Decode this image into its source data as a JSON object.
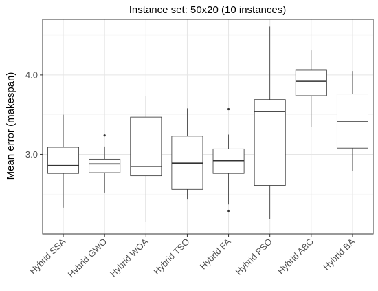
{
  "chart_data": {
    "type": "box",
    "title": "Instance set: 50x20 (10 instances)",
    "xlabel": "",
    "ylabel": "Mean error (makespan)",
    "ylim": [
      2.0,
      4.7
    ],
    "yticks": [
      3.0,
      4.0
    ],
    "ytick_labels": [
      "3.0",
      "4.0"
    ],
    "grid": true,
    "categories": [
      "Hybrid SSA",
      "Hybrid GWO",
      "Hybrid WOA",
      "Hybrid TSO",
      "Hybrid FA",
      "Hybrid PSO",
      "Hybrid ABC",
      "Hybrid BA"
    ],
    "boxes": [
      {
        "min": 2.33,
        "q1": 2.76,
        "median": 2.86,
        "q3": 3.09,
        "max": 3.5,
        "outliers": []
      },
      {
        "min": 2.52,
        "q1": 2.77,
        "median": 2.88,
        "q3": 2.94,
        "max": 3.1,
        "outliers": [
          3.24
        ]
      },
      {
        "min": 2.15,
        "q1": 2.73,
        "median": 2.85,
        "q3": 3.47,
        "max": 3.74,
        "outliers": []
      },
      {
        "min": 2.44,
        "q1": 2.56,
        "median": 2.89,
        "q3": 3.23,
        "max": 3.58,
        "outliers": []
      },
      {
        "min": 2.37,
        "q1": 2.76,
        "median": 2.92,
        "q3": 3.07,
        "max": 3.25,
        "outliers": [
          2.29,
          3.57
        ]
      },
      {
        "min": 2.19,
        "q1": 2.61,
        "median": 3.54,
        "q3": 3.69,
        "max": 4.61,
        "outliers": []
      },
      {
        "min": 3.35,
        "q1": 3.74,
        "median": 3.92,
        "q3": 4.06,
        "max": 4.31,
        "outliers": []
      },
      {
        "min": 2.79,
        "q1": 3.08,
        "median": 3.41,
        "q3": 3.76,
        "max": 4.05,
        "outliers": []
      }
    ]
  }
}
